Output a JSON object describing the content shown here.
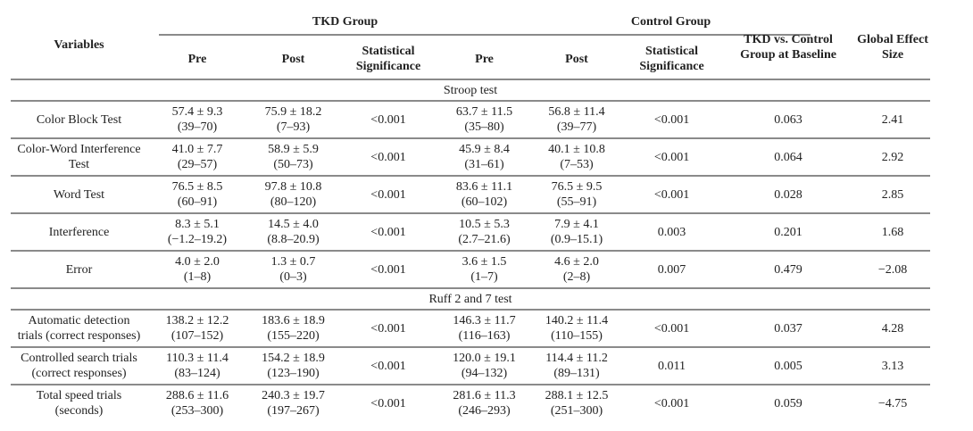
{
  "header": {
    "variables": "Variables",
    "tkd_group": "TKD Group",
    "control_group": "Control Group",
    "pre": "Pre",
    "post": "Post",
    "significance_line1": "Statistical",
    "significance_line2": "Significance",
    "baseline_line1": "TKD vs. Control",
    "baseline_line2": "Group at Baseline",
    "effect_line1": "Global Effect",
    "effect_line2": "Size"
  },
  "sections": [
    {
      "title": "Stroop test",
      "rows": [
        {
          "variable": [
            "Color Block Test"
          ],
          "tkd_pre": [
            "57.4 ± 9.3",
            "(39–70)"
          ],
          "tkd_post": [
            "75.9 ± 18.2",
            "(7–93)"
          ],
          "tkd_sig": "<0.001",
          "ctl_pre": [
            "63.7 ± 11.5",
            "(35–80)"
          ],
          "ctl_post": [
            "56.8 ± 11.4",
            "(39–77)"
          ],
          "ctl_sig": "<0.001",
          "baseline": "0.063",
          "effect": "2.41"
        },
        {
          "variable": [
            "Color-Word Interference",
            "Test"
          ],
          "tkd_pre": [
            "41.0 ± 7.7",
            "(29–57)"
          ],
          "tkd_post": [
            "58.9 ± 5.9",
            "(50–73)"
          ],
          "tkd_sig": "<0.001",
          "ctl_pre": [
            "45.9 ± 8.4",
            "(31–61)"
          ],
          "ctl_post": [
            "40.1 ± 10.8",
            "(7–53)"
          ],
          "ctl_sig": "<0.001",
          "baseline": "0.064",
          "effect": "2.92"
        },
        {
          "variable": [
            "Word Test"
          ],
          "tkd_pre": [
            "76.5 ± 8.5",
            "(60–91)"
          ],
          "tkd_post": [
            "97.8 ± 10.8",
            "(80–120)"
          ],
          "tkd_sig": "<0.001",
          "ctl_pre": [
            "83.6 ± 11.1",
            "(60–102)"
          ],
          "ctl_post": [
            "76.5 ± 9.5",
            "(55–91)"
          ],
          "ctl_sig": "<0.001",
          "baseline": "0.028",
          "effect": "2.85"
        },
        {
          "variable": [
            "Interference"
          ],
          "tkd_pre": [
            "8.3 ± 5.1",
            "(−1.2–19.2)"
          ],
          "tkd_post": [
            "14.5 ± 4.0",
            "(8.8–20.9)"
          ],
          "tkd_sig": "<0.001",
          "ctl_pre": [
            "10.5 ± 5.3",
            "(2.7–21.6)"
          ],
          "ctl_post": [
            "7.9 ± 4.1",
            "(0.9–15.1)"
          ],
          "ctl_sig": "0.003",
          "baseline": "0.201",
          "effect": "1.68"
        },
        {
          "variable": [
            "Error"
          ],
          "tkd_pre": [
            "4.0 ± 2.0",
            "(1–8)"
          ],
          "tkd_post": [
            "1.3 ± 0.7",
            "(0–3)"
          ],
          "tkd_sig": "<0.001",
          "ctl_pre": [
            "3.6 ± 1.5",
            "(1–7)"
          ],
          "ctl_post": [
            "4.6 ± 2.0",
            "(2–8)"
          ],
          "ctl_sig": "0.007",
          "baseline": "0.479",
          "effect": "−2.08"
        }
      ]
    },
    {
      "title": "Ruff 2 and 7 test",
      "rows": [
        {
          "variable": [
            "Automatic detection",
            "trials (correct responses)"
          ],
          "tkd_pre": [
            "138.2 ± 12.2",
            "(107–152)"
          ],
          "tkd_post": [
            "183.6 ± 18.9",
            "(155–220)"
          ],
          "tkd_sig": "<0.001",
          "ctl_pre": [
            "146.3 ± 11.7",
            "(116–163)"
          ],
          "ctl_post": [
            "140.2 ± 11.4",
            "(110–155)"
          ],
          "ctl_sig": "<0.001",
          "baseline": "0.037",
          "effect": "4.28"
        },
        {
          "variable": [
            "Controlled search trials",
            "(correct responses)"
          ],
          "tkd_pre": [
            "110.3 ± 11.4",
            "(83–124)"
          ],
          "tkd_post": [
            "154.2 ± 18.9",
            "(123–190)"
          ],
          "tkd_sig": "<0.001",
          "ctl_pre": [
            "120.0 ± 19.1",
            "(94–132)"
          ],
          "ctl_post": [
            "114.4 ± 11.2",
            "(89–131)"
          ],
          "ctl_sig": "0.011",
          "baseline": "0.005",
          "effect": "3.13"
        },
        {
          "variable": [
            "Total speed trials",
            "(seconds)"
          ],
          "tkd_pre": [
            "288.6 ± 11.6",
            "(253–300)"
          ],
          "tkd_post": [
            "240.3 ± 19.7",
            "(197–267)"
          ],
          "tkd_sig": "<0.001",
          "ctl_pre": [
            "281.6 ± 11.3",
            "(246–293)"
          ],
          "ctl_post": [
            "288.1 ± 12.5",
            "(251–300)"
          ],
          "ctl_sig": "<0.001",
          "baseline": "0.059",
          "effect": "−4.75"
        }
      ]
    }
  ]
}
